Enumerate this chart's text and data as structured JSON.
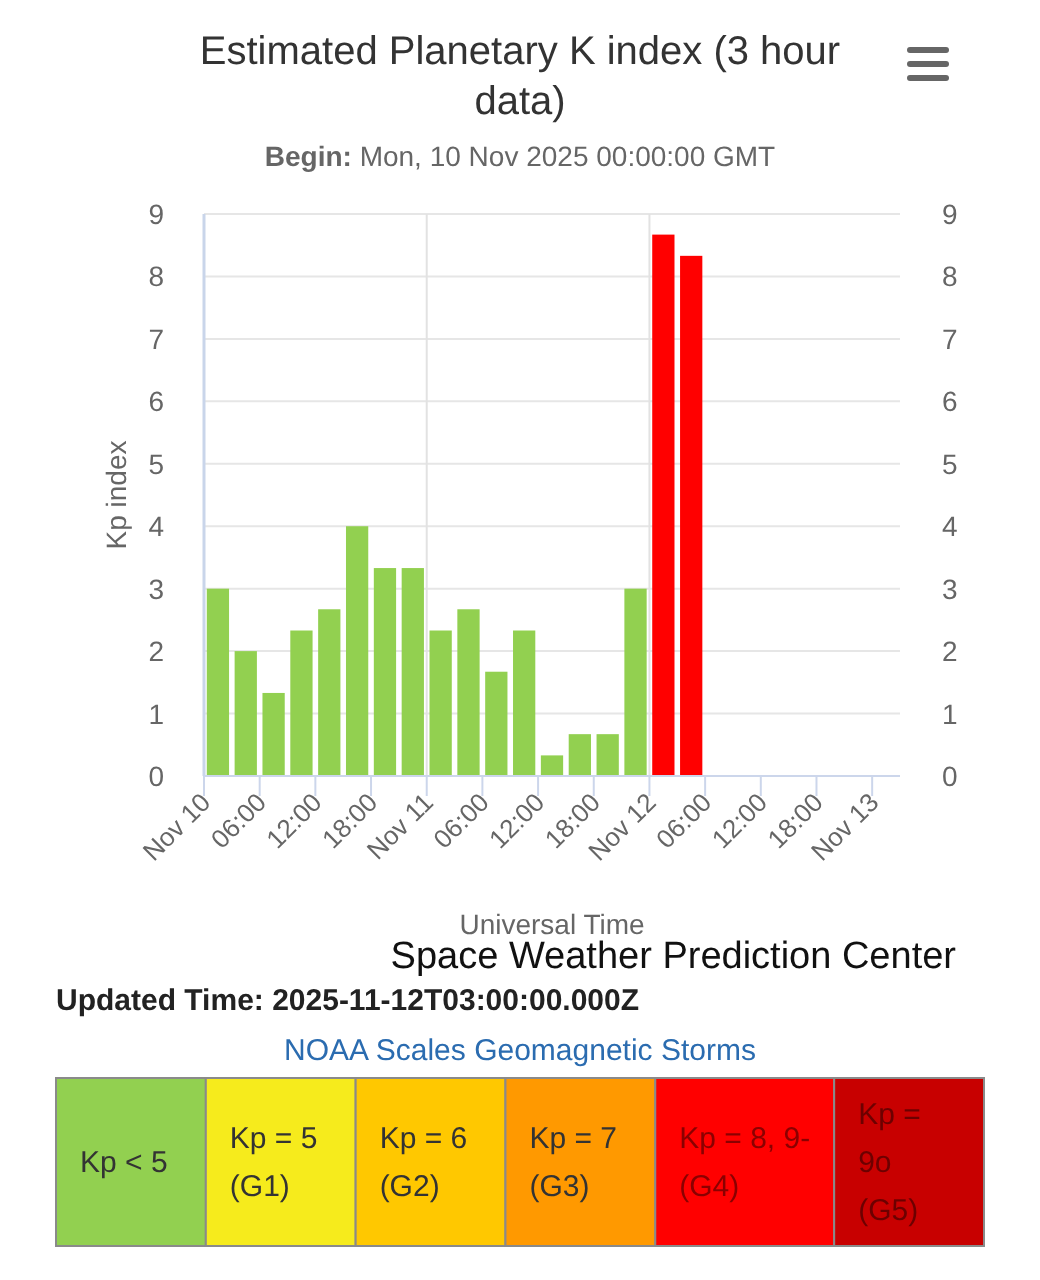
{
  "chart_data": [
    {
      "type": "bar",
      "title": "Estimated Planetary K index (3 hour data)",
      "subtitle": "Begin: Mon, 10 Nov 2025 00:00:00 GMT",
      "xlabel": "Universal Time",
      "ylabel": "Kp index",
      "x": [
        "2025-11-10T01:30",
        "2025-11-10T04:30",
        "2025-11-10T07:30",
        "2025-11-10T10:30",
        "2025-11-10T13:30",
        "2025-11-10T16:30",
        "2025-11-10T19:30",
        "2025-11-10T22:30",
        "2025-11-11T01:30",
        "2025-11-11T04:30",
        "2025-11-11T07:30",
        "2025-11-11T10:30",
        "2025-11-11T13:30",
        "2025-11-11T16:30",
        "2025-11-11T19:30",
        "2025-11-11T22:30",
        "2025-11-12T01:30",
        "2025-11-12T04:30"
      ],
      "values": [
        3,
        2,
        1.33,
        2.33,
        2.67,
        4,
        3.33,
        3.33,
        2.33,
        2.67,
        1.67,
        2.33,
        0.33,
        0.67,
        0.67,
        3,
        8.67,
        8.33
      ],
      "colors": [
        "#92d050",
        "#92d050",
        "#92d050",
        "#92d050",
        "#92d050",
        "#92d050",
        "#92d050",
        "#92d050",
        "#92d050",
        "#92d050",
        "#92d050",
        "#92d050",
        "#92d050",
        "#92d050",
        "#92d050",
        "#92d050",
        "#ff0000",
        "#ff0000"
      ],
      "xlim": [
        "2025-11-10T00:00",
        "2025-11-13T03:00"
      ],
      "xticks": [
        {
          "value": "2025-11-10",
          "label": "Nov 10"
        },
        {
          "value": "2025-11-10T06:00",
          "label": "06:00"
        },
        {
          "value": "2025-11-10T12:00",
          "label": "12:00"
        },
        {
          "value": "2025-11-10T18:00",
          "label": "18:00"
        },
        {
          "value": "2025-11-11",
          "label": "Nov 11"
        },
        {
          "value": "2025-11-11T06:00",
          "label": "06:00"
        },
        {
          "value": "2025-11-11T12:00",
          "label": "12:00"
        },
        {
          "value": "2025-11-11T18:00",
          "label": "18:00"
        },
        {
          "value": "2025-11-12",
          "label": "Nov 12"
        },
        {
          "value": "2025-11-12T06:00",
          "label": "06:00"
        },
        {
          "value": "2025-11-12T12:00",
          "label": "12:00"
        },
        {
          "value": "2025-11-12T18:00",
          "label": "18:00"
        },
        {
          "value": "2025-11-13",
          "label": "Nov 13"
        }
      ],
      "ylim": [
        0,
        9
      ],
      "yticks": [
        0,
        1,
        2,
        3,
        4,
        5,
        6,
        7,
        8,
        9
      ],
      "y2lim": [
        0,
        9
      ],
      "y2ticks": [
        0,
        1,
        2,
        3,
        4,
        5,
        6,
        7,
        8,
        9
      ],
      "grid": "y",
      "ref_lines": [
        {
          "axis": "x",
          "value": "2025-11-11",
          "color": "#e2e2e2"
        },
        {
          "axis": "x",
          "value": "2025-11-12",
          "color": "#e2e2e2"
        }
      ],
      "annotations": [
        "Space Weather Prediction Center",
        "Updated Time: 2025-11-12T03:00:00.000Z"
      ]
    },
    {
      "type": "other",
      "title": "NOAA Scales Geomagnetic Storms",
      "categories": [
        "Kp < 5",
        "Kp = 5 (G1)",
        "Kp = 6 (G2)",
        "Kp = 7 (G3)",
        "Kp = 8, 9- (G4)",
        "Kp = 9o (G5)"
      ],
      "colors": [
        "#92d050",
        "#f6eb1c",
        "#ffc800",
        "#ff9900",
        "#ff0000",
        "#c80000"
      ]
    }
  ]
}
